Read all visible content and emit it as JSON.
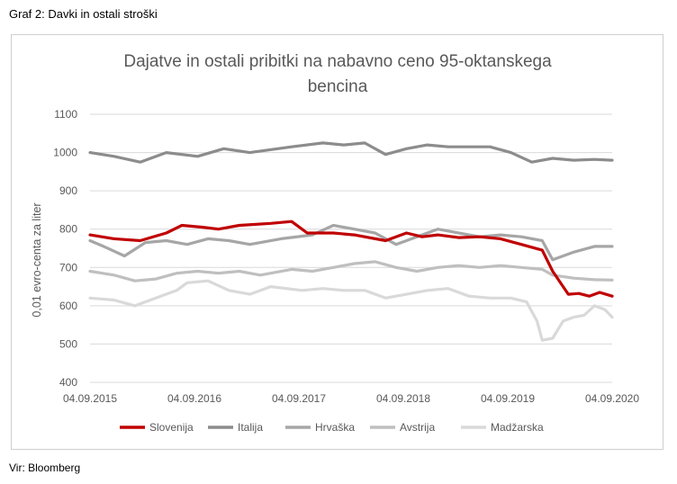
{
  "caption": "Graf 2: Davki in ostali stroški",
  "source": "Vir: Bloomberg",
  "colors": {
    "Slovenija": "#c00000",
    "Italija": "#8c8c8c",
    "Hrvaška": "#a6a6a6",
    "Avstrija": "#bfbfbf",
    "Madžarska": "#d9d9d9"
  },
  "chart_data": {
    "type": "line",
    "title_lines": [
      "Dajatve in ostali pribitki na nabavno ceno 95-oktanskega",
      "bencina"
    ],
    "ylabel": "0,01 evro-centa za liter",
    "xlabel": "",
    "ylim": [
      400,
      1100
    ],
    "yticks": [
      400,
      500,
      600,
      700,
      800,
      900,
      1000,
      1100
    ],
    "xlim": [
      2015.67,
      2020.67
    ],
    "xticks": [
      {
        "t": 2015.67,
        "label": "04.09.2015"
      },
      {
        "t": 2016.67,
        "label": "04.09.2016"
      },
      {
        "t": 2017.67,
        "label": "04.09.2017"
      },
      {
        "t": 2018.67,
        "label": "04.09.2018"
      },
      {
        "t": 2019.67,
        "label": "04.09.2019"
      },
      {
        "t": 2020.67,
        "label": "04.09.2020"
      }
    ],
    "legend": "bottom",
    "series": [
      {
        "name": "Slovenija",
        "x": [
          2015.67,
          2015.9,
          2016.15,
          2016.4,
          2016.55,
          2016.75,
          2016.9,
          2017.1,
          2017.4,
          2017.6,
          2017.75,
          2018.0,
          2018.2,
          2018.5,
          2018.7,
          2018.85,
          2019.0,
          2019.2,
          2019.4,
          2019.6,
          2019.8,
          2020.0,
          2020.1,
          2020.2,
          2020.25,
          2020.35,
          2020.45,
          2020.55,
          2020.67
        ],
        "y": [
          785,
          775,
          770,
          790,
          810,
          805,
          800,
          810,
          815,
          820,
          790,
          790,
          785,
          770,
          790,
          780,
          785,
          778,
          780,
          775,
          760,
          745,
          690,
          650,
          630,
          632,
          625,
          635,
          625
        ]
      },
      {
        "name": "Italija",
        "x": [
          2015.67,
          2015.9,
          2016.15,
          2016.4,
          2016.7,
          2016.95,
          2017.2,
          2017.6,
          2017.9,
          2018.1,
          2018.3,
          2018.5,
          2018.7,
          2018.9,
          2019.1,
          2019.3,
          2019.5,
          2019.7,
          2019.9,
          2020.1,
          2020.3,
          2020.5,
          2020.67
        ],
        "y": [
          1000,
          990,
          975,
          1000,
          990,
          1010,
          1000,
          1015,
          1025,
          1020,
          1025,
          995,
          1010,
          1020,
          1015,
          1015,
          1015,
          1000,
          975,
          985,
          980,
          982,
          980
        ]
      },
      {
        "name": "Hrvaška",
        "x": [
          2015.67,
          2015.8,
          2016.0,
          2016.2,
          2016.4,
          2016.6,
          2016.8,
          2017.0,
          2017.2,
          2017.5,
          2017.8,
          2018.0,
          2018.2,
          2018.4,
          2018.6,
          2018.8,
          2019.0,
          2019.2,
          2019.4,
          2019.6,
          2019.8,
          2020.0,
          2020.1,
          2020.3,
          2020.5,
          2020.67
        ],
        "y": [
          770,
          755,
          730,
          765,
          770,
          760,
          775,
          770,
          760,
          775,
          785,
          810,
          800,
          790,
          760,
          780,
          800,
          790,
          780,
          785,
          780,
          770,
          720,
          740,
          755,
          755
        ]
      },
      {
        "name": "Avstrija",
        "x": [
          2015.67,
          2015.9,
          2016.1,
          2016.3,
          2016.5,
          2016.7,
          2016.9,
          2017.1,
          2017.3,
          2017.6,
          2017.8,
          2018.0,
          2018.2,
          2018.4,
          2018.6,
          2018.8,
          2019.0,
          2019.2,
          2019.4,
          2019.6,
          2019.8,
          2020.0,
          2020.1,
          2020.3,
          2020.5,
          2020.67
        ],
        "y": [
          690,
          680,
          665,
          670,
          685,
          690,
          685,
          690,
          680,
          695,
          690,
          700,
          710,
          715,
          700,
          690,
          700,
          705,
          700,
          705,
          700,
          695,
          680,
          672,
          668,
          667
        ]
      },
      {
        "name": "Madžarska",
        "x": [
          2015.67,
          2015.9,
          2016.1,
          2016.3,
          2016.5,
          2016.6,
          2016.8,
          2017.0,
          2017.2,
          2017.4,
          2017.7,
          2017.9,
          2018.1,
          2018.3,
          2018.5,
          2018.7,
          2018.9,
          2019.1,
          2019.3,
          2019.5,
          2019.7,
          2019.85,
          2019.95,
          2020.0,
          2020.1,
          2020.2,
          2020.3,
          2020.4,
          2020.5,
          2020.6,
          2020.67
        ],
        "y": [
          620,
          615,
          600,
          620,
          640,
          660,
          665,
          640,
          630,
          650,
          640,
          645,
          640,
          640,
          620,
          630,
          640,
          645,
          625,
          620,
          620,
          610,
          560,
          510,
          515,
          560,
          570,
          575,
          600,
          590,
          570
        ]
      }
    ]
  }
}
